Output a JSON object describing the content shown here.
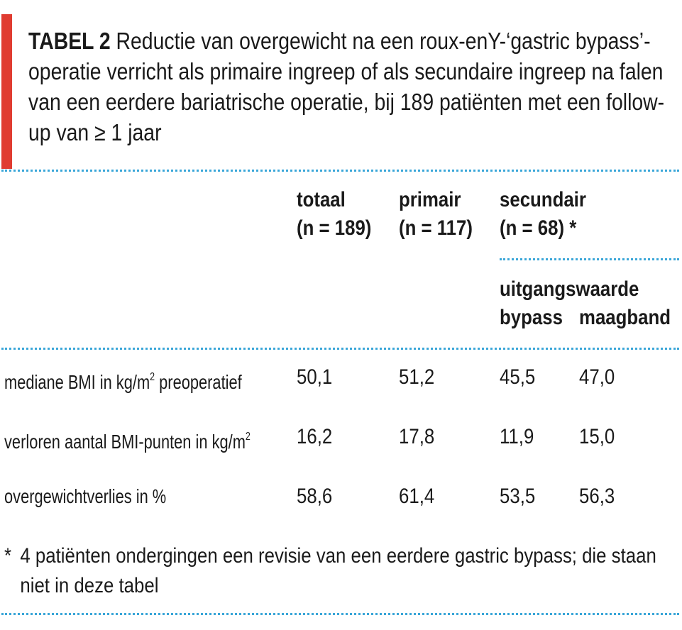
{
  "colors": {
    "accent": "#e03c31",
    "dotted_rule": "#3aa6d8",
    "text": "#1a1a1a"
  },
  "table": {
    "label": "TABEL 2",
    "caption": "Reductie van overgewicht na een roux-enY-‘gastric bypass’-operatie verricht als primaire ingreep of als secundaire ingreep na falen van een eerdere bariatrische operatie, bij 189 patiënten met een follow-up van ≥ 1 jaar",
    "columns": {
      "totaal": {
        "name": "totaal",
        "n": "(n = 189)"
      },
      "primair": {
        "name": "primair",
        "n": "(n = 117)"
      },
      "secundair": {
        "name": "secundair",
        "n": "(n = 68) *"
      },
      "subgroup_title": "uitgangswaarde",
      "bypass": "bypass",
      "maagband": "maagband"
    },
    "rows": [
      {
        "label": "mediane BMI in kg/m",
        "sup": "2",
        "label_suffix": " preoperatief",
        "totaal": "50,1",
        "primair": "51,2",
        "bypass": "45,5",
        "maagband": "47,0"
      },
      {
        "label": "verloren aantal BMI-punten in kg/m",
        "sup": "2",
        "label_suffix": "",
        "totaal": "16,2",
        "primair": "17,8",
        "bypass": "11,9",
        "maagband": "15,0"
      },
      {
        "label": "overgewichtverlies in %",
        "sup": "",
        "label_suffix": "",
        "totaal": "58,6",
        "primair": "61,4",
        "bypass": "53,5",
        "maagband": "56,3"
      }
    ],
    "footnote_marker": "*",
    "footnote": "4 patiënten ondergingen een revisie van een eerdere gastric bypass; die staan niet in deze tabel"
  }
}
